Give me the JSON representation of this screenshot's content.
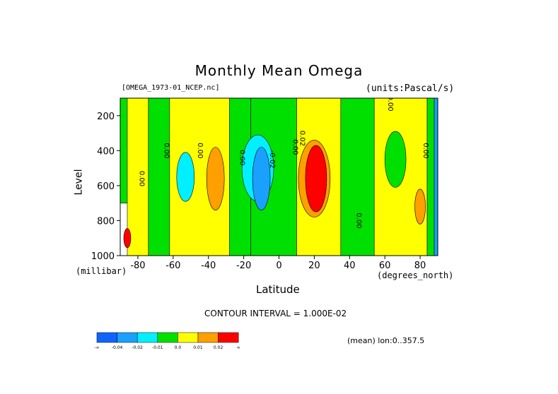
{
  "title": "Monthly Mean Omega",
  "source_label": "[OMEGA_1973-01_NCEP.nc]",
  "units_label": "(units:Pascal/s)",
  "ylabel": "Level",
  "yunit": "(millibar)",
  "xlabel": "Latitude",
  "xunit": "(degrees_north)",
  "contour_interval_text": "CONTOUR INTERVAL = 1.000E-02",
  "mean_label": "(mean) lon:0..357.5",
  "chart_data": {
    "type": "heatmap",
    "title": "Monthly Mean Omega",
    "xlabel": "Latitude",
    "ylabel": "Level",
    "xlim": [
      -90,
      90
    ],
    "ylim": [
      1000,
      100
    ],
    "x_ticks": [
      -80,
      -60,
      -40,
      -20,
      0,
      20,
      40,
      60,
      80
    ],
    "y_ticks": [
      200,
      400,
      600,
      800,
      1000
    ],
    "contour_interval": 0.01,
    "contour_labels": [
      {
        "text": "0.00",
        "lat": -79,
        "lev": 560
      },
      {
        "text": "0.00",
        "lat": -65,
        "lev": 400
      },
      {
        "text": "0.00",
        "lat": -46,
        "lev": 400
      },
      {
        "text": "0.00",
        "lat": -22,
        "lev": 440
      },
      {
        "text": "-0.02",
        "lat": -5,
        "lev": 450
      },
      {
        "text": "0.00",
        "lat": 8,
        "lev": 380
      },
      {
        "text": "0.02",
        "lat": 12,
        "lev": 330
      },
      {
        "text": "0.00",
        "lat": 44,
        "lev": 800
      },
      {
        "text": "0.00",
        "lat": 62,
        "lev": 130
      },
      {
        "text": "0.00",
        "lat": 82,
        "lev": 400
      }
    ],
    "colorbar": {
      "colors": [
        "#0f64ff",
        "#1aa0ff",
        "#00f0ff",
        "#00e000",
        "#ffff00",
        "#ff9f00",
        "#ff0000"
      ],
      "labels": [
        "-∞",
        "-0.04",
        "-0.02",
        "-0.01",
        "0.0",
        "0.01",
        "0.02",
        "∞"
      ]
    },
    "bands": [
      {
        "color": "#00e000",
        "lat0": -90,
        "lat1": -84,
        "lev0": 100,
        "lev1": 700
      },
      {
        "color": "#ffff00",
        "lat0": -86,
        "lat1": -74,
        "lev0": 100,
        "lev1": 1000
      },
      {
        "color": "#00e000",
        "lat0": -74,
        "lat1": -62,
        "lev0": 100,
        "lev1": 1000
      },
      {
        "color": "#ffff00",
        "lat0": -62,
        "lat1": -28,
        "lev0": 100,
        "lev1": 1000
      },
      {
        "color": "#00e000",
        "lat0": -28,
        "lat1": -16,
        "lev0": 100,
        "lev1": 1000
      },
      {
        "color": "#00e000",
        "lat0": -16,
        "lat1": 10,
        "lev0": 100,
        "lev1": 1000
      },
      {
        "color": "#ffff00",
        "lat0": 10,
        "lat1": 35,
        "lev0": 100,
        "lev1": 1000
      },
      {
        "color": "#00e000",
        "lat0": 35,
        "lat1": 54,
        "lev0": 100,
        "lev1": 1000
      },
      {
        "color": "#ffff00",
        "lat0": 54,
        "lat1": 84,
        "lev0": 100,
        "lev1": 1000
      },
      {
        "color": "#00e000",
        "lat0": 84,
        "lat1": 88,
        "lev0": 100,
        "lev1": 1000
      },
      {
        "color": "#1aa0ff",
        "lat0": 88,
        "lat1": 90,
        "lev0": 100,
        "lev1": 1000
      }
    ],
    "blobs": [
      {
        "color": "#00f0ff",
        "lat": -12,
        "lev": 500,
        "dlat": 9,
        "dlev": 380
      },
      {
        "color": "#1aa0ff",
        "lat": -10,
        "lev": 560,
        "dlat": 5,
        "dlev": 360
      },
      {
        "color": "#00f0ff",
        "lat": -53,
        "lev": 550,
        "dlat": 5,
        "dlev": 280
      },
      {
        "color": "#ff9f00",
        "lat": -36,
        "lev": 560,
        "dlat": 5,
        "dlev": 360
      },
      {
        "color": "#ff9f00",
        "lat": 20,
        "lev": 560,
        "dlat": 9,
        "dlev": 440
      },
      {
        "color": "#ff0000",
        "lat": 21,
        "lev": 560,
        "dlat": 6,
        "dlev": 380
      },
      {
        "color": "#00e000",
        "lat": 66,
        "lev": 450,
        "dlat": 6,
        "dlev": 320
      },
      {
        "color": "#ff9f00",
        "lat": 80,
        "lev": 720,
        "dlat": 3,
        "dlev": 200
      },
      {
        "color": "#ff0000",
        "lat": -86,
        "lev": 900,
        "dlat": 2,
        "dlev": 110
      }
    ]
  }
}
